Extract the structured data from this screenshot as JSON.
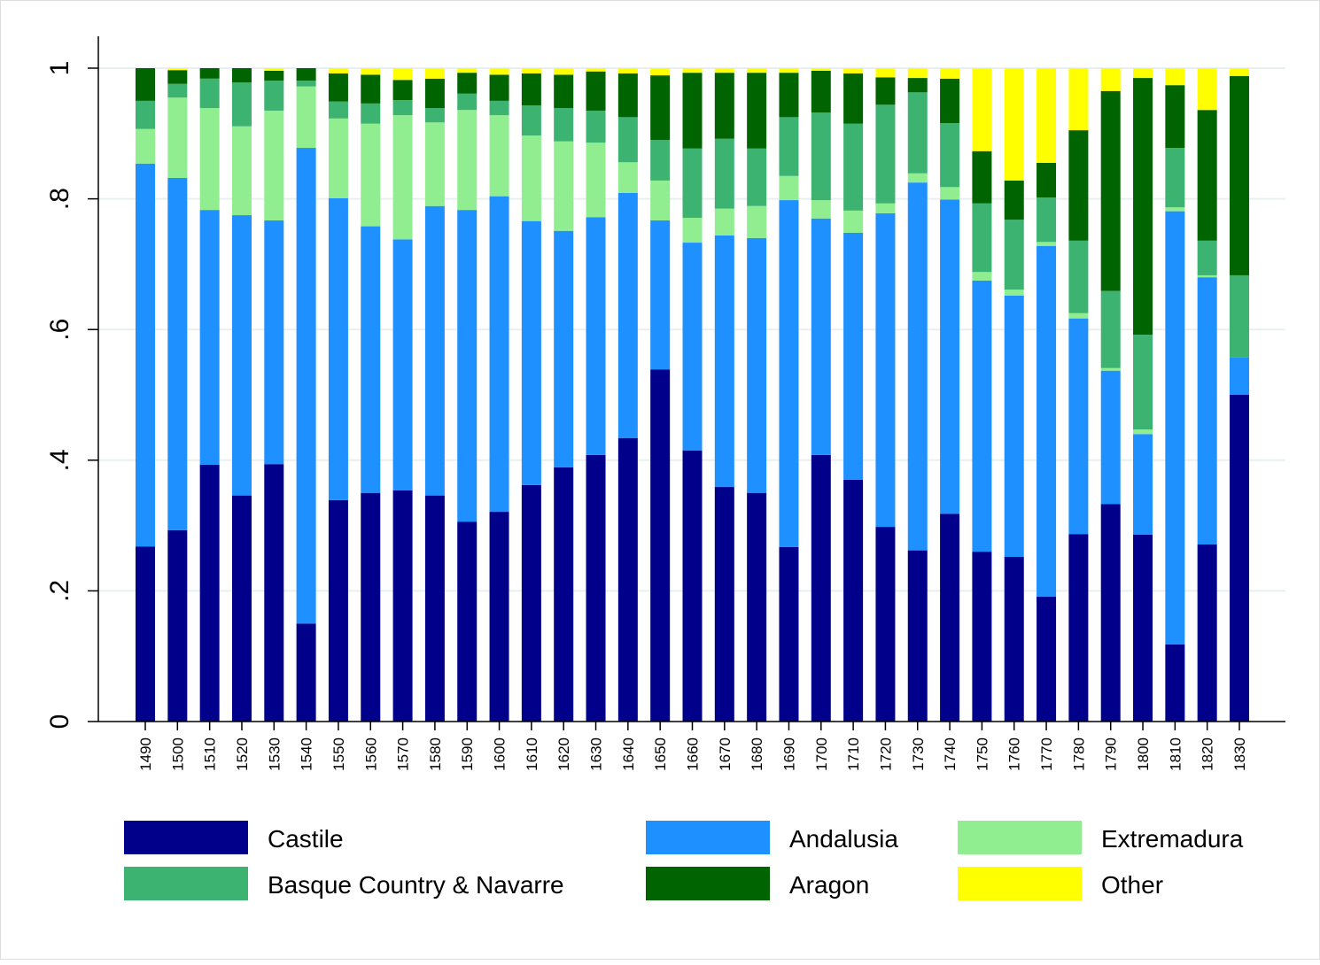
{
  "chart_data": {
    "type": "bar",
    "stacked": true,
    "title": "",
    "xlabel": "",
    "ylabel": "",
    "ylim": [
      0,
      1
    ],
    "yticks": [
      0,
      0.2,
      0.4,
      0.6,
      0.8,
      1
    ],
    "ytick_labels": [
      "0",
      ".2",
      ".4",
      ".6",
      ".8",
      "1"
    ],
    "grid": true,
    "legend_position": "bottom",
    "categories": [
      "1490",
      "1500",
      "1510",
      "1520",
      "1530",
      "1540",
      "1550",
      "1560",
      "1570",
      "1580",
      "1590",
      "1600",
      "1610",
      "1620",
      "1630",
      "1640",
      "1650",
      "1660",
      "1670",
      "1680",
      "1690",
      "1700",
      "1710",
      "1720",
      "1730",
      "1740",
      "1750",
      "1760",
      "1770",
      "1780",
      "1790",
      "1800",
      "1810",
      "1820",
      "1830"
    ],
    "series": [
      {
        "name": "Castile",
        "color": "#00008B",
        "values": [
          0.268,
          0.293,
          0.393,
          0.346,
          0.394,
          0.15,
          0.339,
          0.35,
          0.354,
          0.346,
          0.306,
          0.321,
          0.362,
          0.389,
          0.408,
          0.434,
          0.539,
          0.415,
          0.359,
          0.35,
          0.267,
          0.408,
          0.37,
          0.298,
          0.262,
          0.318,
          0.26,
          0.252,
          0.191,
          0.287,
          0.333,
          0.286,
          0.118,
          0.271,
          0.5
        ]
      },
      {
        "name": "Andalusia",
        "color": "#1E90FF",
        "values": [
          0.586,
          0.539,
          0.39,
          0.429,
          0.373,
          0.728,
          0.462,
          0.408,
          0.384,
          0.443,
          0.477,
          0.483,
          0.404,
          0.362,
          0.364,
          0.375,
          0.228,
          0.318,
          0.385,
          0.39,
          0.531,
          0.362,
          0.378,
          0.48,
          0.563,
          0.481,
          0.415,
          0.4,
          0.537,
          0.33,
          0.204,
          0.154,
          0.663,
          0.409,
          0.057
        ]
      },
      {
        "name": "Extremadura",
        "color": "#90EE90",
        "values": [
          0.053,
          0.123,
          0.156,
          0.136,
          0.168,
          0.094,
          0.122,
          0.157,
          0.19,
          0.128,
          0.153,
          0.124,
          0.131,
          0.137,
          0.114,
          0.047,
          0.061,
          0.038,
          0.041,
          0.049,
          0.037,
          0.028,
          0.034,
          0.015,
          0.014,
          0.019,
          0.013,
          0.009,
          0.006,
          0.008,
          0.004,
          0.007,
          0.006,
          0.003,
          0.0
        ]
      },
      {
        "name": "Basque Country & Navarre",
        "color": "#3CB371",
        "values": [
          0.043,
          0.021,
          0.045,
          0.067,
          0.046,
          0.009,
          0.026,
          0.031,
          0.023,
          0.022,
          0.025,
          0.022,
          0.046,
          0.051,
          0.049,
          0.069,
          0.062,
          0.106,
          0.107,
          0.088,
          0.09,
          0.134,
          0.133,
          0.151,
          0.124,
          0.098,
          0.105,
          0.107,
          0.068,
          0.111,
          0.118,
          0.145,
          0.091,
          0.053,
          0.126
        ]
      },
      {
        "name": "Aragon",
        "color": "#006400",
        "values": [
          0.05,
          0.021,
          0.016,
          0.022,
          0.015,
          0.019,
          0.043,
          0.044,
          0.031,
          0.045,
          0.032,
          0.04,
          0.049,
          0.051,
          0.06,
          0.067,
          0.099,
          0.116,
          0.101,
          0.116,
          0.068,
          0.064,
          0.077,
          0.042,
          0.022,
          0.068,
          0.08,
          0.06,
          0.053,
          0.169,
          0.306,
          0.393,
          0.096,
          0.2,
          0.305
        ]
      },
      {
        "name": "Other",
        "color": "#FFFF00",
        "values": [
          0.0,
          0.003,
          0.0,
          0.0,
          0.004,
          0.0,
          0.008,
          0.01,
          0.018,
          0.016,
          0.007,
          0.01,
          0.008,
          0.01,
          0.005,
          0.008,
          0.011,
          0.007,
          0.007,
          0.007,
          0.007,
          0.004,
          0.008,
          0.014,
          0.015,
          0.016,
          0.127,
          0.172,
          0.145,
          0.095,
          0.035,
          0.015,
          0.026,
          0.064,
          0.012
        ]
      }
    ]
  }
}
